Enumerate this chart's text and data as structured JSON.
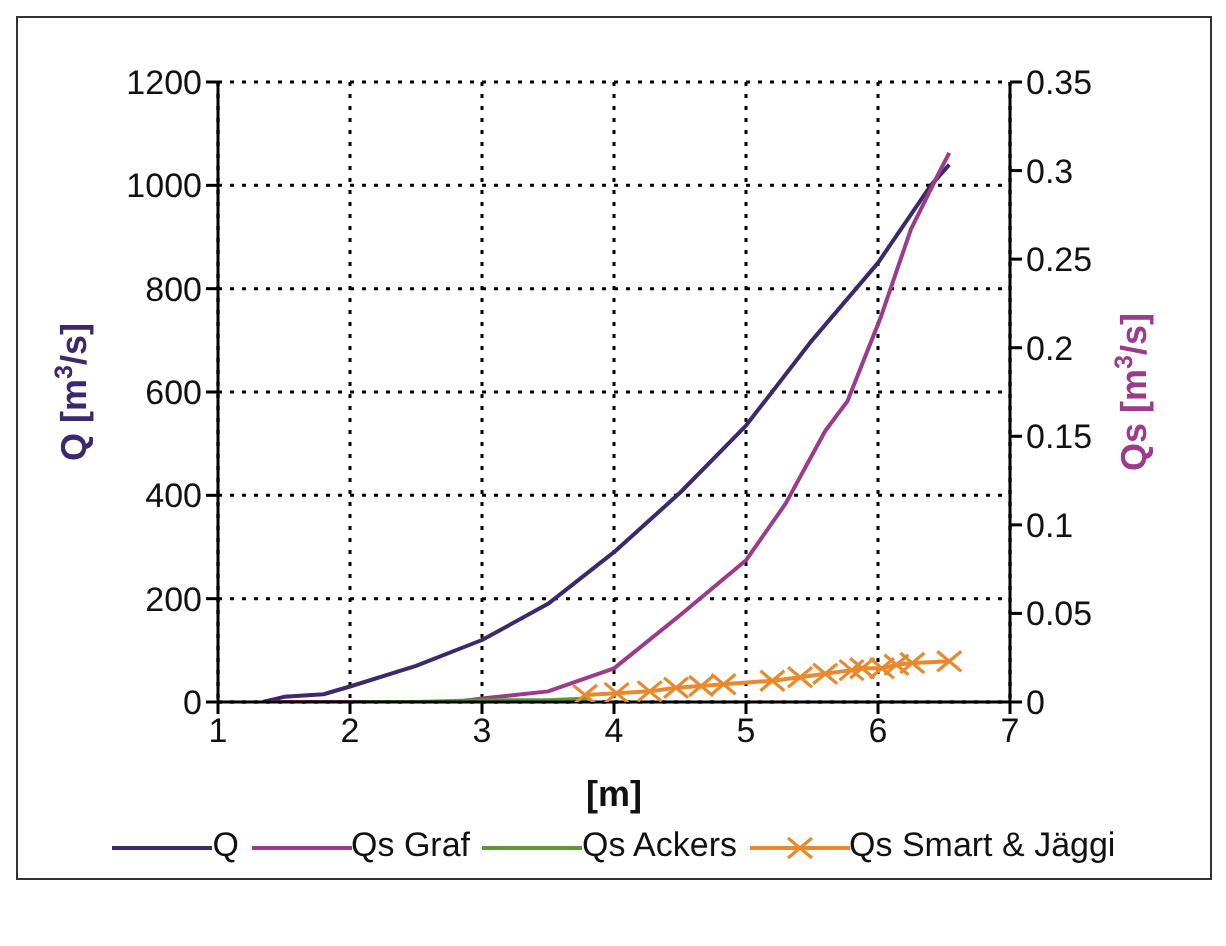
{
  "chart_data": {
    "type": "line",
    "xlabel": "[m]",
    "ylabel": "Q [m$^{3}$/s]",
    "y2label": "Qs [m$^{3}$/s]",
    "xlim": [
      1,
      7
    ],
    "xticks": [
      1,
      2,
      3,
      4,
      5,
      6,
      7
    ],
    "ylim": [
      0,
      1200
    ],
    "yticks": [
      0,
      200,
      400,
      600,
      800,
      1000,
      1200
    ],
    "y2lim": [
      0,
      0.35
    ],
    "y2ticks": [
      0,
      0.05,
      0.1,
      0.15,
      0.2,
      0.25,
      0.3,
      0.35
    ],
    "grid": true,
    "legend": "bottom",
    "marker": "none",
    "line_style": "solid",
    "series": [
      {
        "name": "Q",
        "color": "#3b2a6b",
        "x": [
          1.34,
          1.5,
          1.8,
          2,
          2.5,
          3,
          3.5,
          4,
          4.5,
          5,
          5.5,
          6,
          6.2,
          6.4,
          6.54
        ],
        "values": [
          0,
          10,
          15,
          30,
          70,
          120,
          190,
          290,
          405,
          535,
          700,
          850,
          925,
          1000,
          1040
        ]
      },
      {
        "name": "Qs Graf",
        "color": "#9b3b8a",
        "axis": "y2",
        "x": [
          1.4,
          2.8,
          3,
          3.5,
          4,
          4.5,
          5,
          5.3,
          5.6,
          5.77,
          6.02,
          6.25,
          6.47,
          6.54
        ],
        "values": [
          0,
          0,
          0.002,
          0.006,
          0.019,
          0.049,
          0.08,
          0.112,
          0.153,
          0.17,
          0.217,
          0.267,
          0.3,
          0.31
        ]
      },
      {
        "name": "Qs Ackers",
        "color": "#5a9a3a",
        "axis": "y2",
        "x": [
          2.1,
          2.5,
          3,
          3.5,
          3.8
        ],
        "values": [
          0,
          0,
          0.001,
          0.001,
          0.002
        ]
      },
      {
        "name": "Qs Smart & Jäggi",
        "color": "#e8892e",
        "axis": "y2",
        "marker": "cross",
        "x": [
          3.78,
          4.02,
          4.27,
          4.47,
          4.66,
          4.83,
          5.2,
          5.41,
          5.6,
          5.8,
          5.88,
          6.03,
          6.14,
          6.26,
          6.54
        ],
        "values": [
          0.004,
          0.005,
          0.006,
          0.008,
          0.009,
          0.01,
          0.012,
          0.014,
          0.016,
          0.018,
          0.019,
          0.019,
          0.021,
          0.022,
          0.023
        ]
      }
    ]
  }
}
